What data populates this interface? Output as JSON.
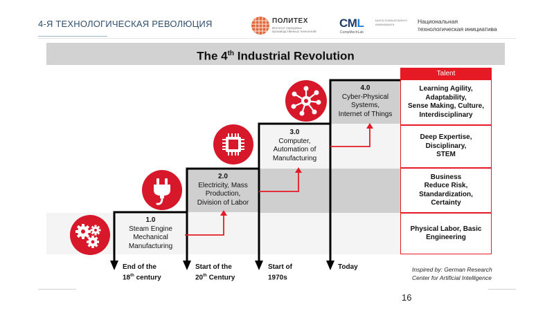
{
  "header": {
    "slide_title": "4-Я ТЕХНОЛОГИЧЕСКАЯ РЕВОЛЮЦИЯ",
    "politeh": {
      "name": "ПОЛИТЕХ",
      "subtitle": "Институт передовых производственных технологий"
    },
    "cml": {
      "name_main": "CM",
      "name_accent": "L",
      "subtitle": "Центр компьютерного инжиниринга",
      "tag": "CompMechLab"
    },
    "nti": {
      "line1": "Национальная",
      "line2": "технологическая инициатива"
    }
  },
  "figure": {
    "title_prefix": "The 4",
    "title_sup": "th",
    "title_suffix": " Industrial Revolution",
    "stages": [
      {
        "number": "1.0",
        "line1": "Steam Engine",
        "line2": "Mechanical",
        "line3": "Manufacturing",
        "icon": "gears-icon"
      },
      {
        "number": "2.0",
        "line1": "Electricity, Mass",
        "line2": "Production,",
        "line3": "Division of Labor",
        "icon": "plug-icon"
      },
      {
        "number": "3.0",
        "line1": "Computer,",
        "line2": "Automation of",
        "line3": "Manufacturing",
        "icon": "chip-icon"
      },
      {
        "number": "4.0",
        "line1": "Cyber-Physical",
        "line2": "Systems,",
        "line3": "Internet of Things",
        "icon": "network-icon"
      }
    ],
    "talent_header": "Talent",
    "talent": [
      {
        "line1": "Learning Agility,",
        "line2": "Adaptability,",
        "line3": "Sense Making, Culture,",
        "line4": "Interdisciplinary"
      },
      {
        "line1": "Deep Expertise,",
        "line2": "Disciplinary,",
        "line3": "STEM"
      },
      {
        "line1": "Business",
        "line2": "Reduce Risk,",
        "line3": "Standardization,",
        "line4": "Certainty"
      },
      {
        "line1": "Physical Labor, Basic",
        "line2": "Engineering"
      }
    ],
    "timeline": [
      {
        "line1": "End of the",
        "line2_prefix": "18",
        "line2_sup": "th",
        "line2_suffix": " century"
      },
      {
        "line1": "Start of the",
        "line2_prefix": "20",
        "line2_sup": "th",
        "line2_suffix": " Century"
      },
      {
        "line1": "Start of",
        "line2_prefix": "1970s",
        "line2_sup": "",
        "line2_suffix": ""
      },
      {
        "line1": "Today",
        "line2_prefix": "",
        "line2_sup": "",
        "line2_suffix": ""
      }
    ],
    "credit_line1": "Inspired by: German Research",
    "credit_line2": "Center for Artificial Intelligence"
  },
  "page_number": "16",
  "colors": {
    "accent_red": "#e51a24",
    "step_gray": "#cfcfcf",
    "light_gray": "#f4f4f4",
    "title_bar": "#d2d2d2"
  }
}
